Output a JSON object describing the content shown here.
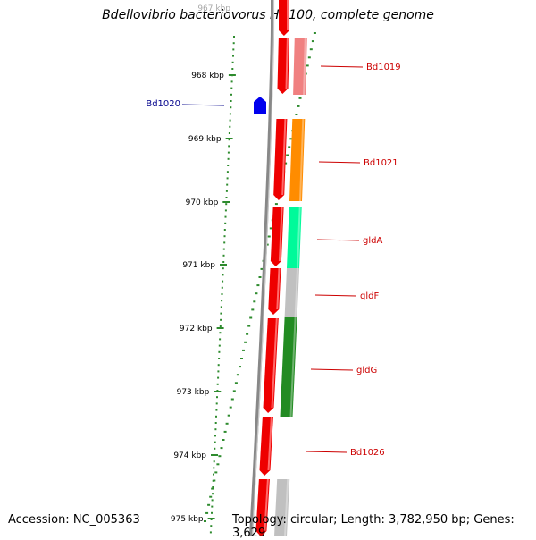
{
  "title": "Bdellovibrio bacteriovorus HD100, complete genome",
  "footer": {
    "accession": "Accession: NC_005363",
    "topology": "Topology: circular; Length: 3,782,950 bp; Genes: 3,629"
  },
  "colors": {
    "tick": "#2e8b2e",
    "forward_strand": "#ee0000",
    "backbone": "#888888",
    "label_red": "#cc0000",
    "label_blue": "#00008b",
    "feature_blue": "#0000ee"
  },
  "scale": {
    "unit": "kbp",
    "partial_top_label": "967 kbp",
    "labels": [
      "968 kbp",
      "969 kbp",
      "970 kbp",
      "971 kbp",
      "972 kbp",
      "973 kbp",
      "974 kbp",
      "975 kbp"
    ]
  },
  "genes": [
    {
      "name": "Bd1019",
      "color": "#f08080",
      "side": "right"
    },
    {
      "name": "Bd1020",
      "color": "#0000ee",
      "side": "left"
    },
    {
      "name": "Bd1021",
      "color": "#ff8c00",
      "side": "right"
    },
    {
      "name": "gldA",
      "color": "#00fa9a",
      "side": "right"
    },
    {
      "name": "gldF",
      "color": "#c0c0c0",
      "side": "right"
    },
    {
      "name": "gldG",
      "color": "#228b22",
      "side": "right"
    },
    {
      "name": "Bd1026",
      "color": "#c0c0c0",
      "side": "right"
    }
  ]
}
